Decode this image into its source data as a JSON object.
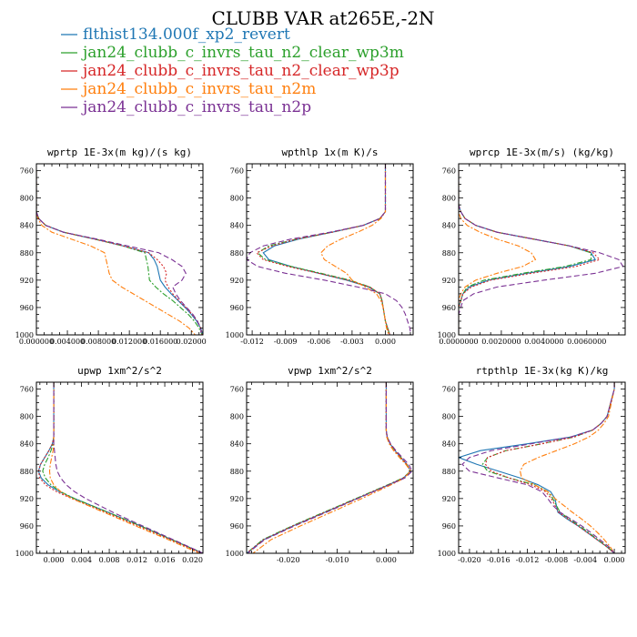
{
  "figure_title": "CLUBB VAR at265E,-2N",
  "legend": [
    {
      "label": "flthist134.000f_xp2_revert",
      "color": "#1f77b4",
      "dash": "solid"
    },
    {
      "label": "jan24_clubb_c_invrs_tau_n2_clear_wp3m",
      "color": "#2ca02c",
      "dash": "dashdot"
    },
    {
      "label": "jan24_clubb_c_invrs_tau_n2_clear_wp3p",
      "color": "#d62728",
      "dash": "dot"
    },
    {
      "label": "jan24_clubb_c_invrs_tau_n2m",
      "color": "#ff7f0e",
      "dash": "dashdot"
    },
    {
      "label": "jan24_clubb_c_invrs_tau_n2p",
      "color": "#7b3294",
      "dash": "dash"
    }
  ],
  "chart_data": [
    {
      "type": "line",
      "title": "wprtp  1E-3x(m kg)/(s kg)",
      "ylim": [
        1000,
        750
      ],
      "yticks": [
        "760",
        "800",
        "840",
        "880",
        "920",
        "960",
        "1000"
      ],
      "yticks_values": [
        760,
        800,
        840,
        880,
        920,
        960,
        1000
      ],
      "xlim": [
        0,
        0.0215
      ],
      "xticks": [
        "0.000000",
        "0.004000",
        "0.008000",
        "0.012000",
        "0.016000",
        "0.02000"
      ],
      "xticks_values": [
        0,
        0.004,
        0.008,
        0.012,
        0.016,
        0.02
      ],
      "y": [
        760,
        800,
        820,
        830,
        840,
        850,
        860,
        870,
        880,
        890,
        900,
        910,
        920,
        930,
        940,
        950,
        960,
        970,
        980,
        990,
        1000
      ],
      "series": [
        {
          "values": [
            0,
            0,
            0,
            0.0003,
            0.0012,
            0.0035,
            0.0075,
            0.0112,
            0.0145,
            0.0152,
            0.0156,
            0.0158,
            0.016,
            0.0166,
            0.0174,
            0.0183,
            0.0192,
            0.02,
            0.0207,
            0.0212,
            0.0215
          ]
        },
        {
          "values": [
            0,
            0,
            0,
            0.0003,
            0.0012,
            0.0035,
            0.0075,
            0.0112,
            0.014,
            0.0142,
            0.0144,
            0.0145,
            0.0146,
            0.0154,
            0.0164,
            0.0176,
            0.0186,
            0.0196,
            0.0204,
            0.021,
            0.0214
          ]
        },
        {
          "values": [
            0,
            0,
            0,
            0.0003,
            0.0012,
            0.0035,
            0.0075,
            0.0112,
            0.0145,
            0.0156,
            0.0164,
            0.0168,
            0.0166,
            0.017,
            0.0176,
            0.0184,
            0.0193,
            0.0201,
            0.0208,
            0.0212,
            0.0214
          ]
        },
        {
          "values": [
            0,
            0,
            0,
            0.0002,
            0.0007,
            0.002,
            0.0045,
            0.007,
            0.0088,
            0.009,
            0.0092,
            0.0094,
            0.0098,
            0.011,
            0.0125,
            0.014,
            0.0155,
            0.017,
            0.0185,
            0.0197,
            0.0205
          ]
        },
        {
          "values": [
            0,
            0,
            0,
            0.0003,
            0.0012,
            0.0035,
            0.0078,
            0.0118,
            0.0158,
            0.0175,
            0.0188,
            0.0193,
            0.0188,
            0.0176,
            0.018,
            0.0186,
            0.0194,
            0.0202,
            0.0208,
            0.0212,
            0.0213
          ]
        }
      ]
    },
    {
      "type": "line",
      "title": "wpthlp  1x(m K)/s",
      "ylim": [
        1000,
        750
      ],
      "yticks": [
        "760",
        "800",
        "840",
        "880",
        "920",
        "960",
        "1000"
      ],
      "yticks_values": [
        760,
        800,
        840,
        880,
        920,
        960,
        1000
      ],
      "xlim": [
        -0.0125,
        0.0025
      ],
      "xticks": [
        "-0.012",
        "-0.009",
        "-0.006",
        "-0.003",
        "0.000"
      ],
      "xticks_values": [
        -0.012,
        -0.009,
        -0.006,
        -0.003,
        0
      ],
      "y": [
        750,
        800,
        820,
        830,
        840,
        850,
        860,
        870,
        880,
        890,
        900,
        910,
        920,
        930,
        940,
        950,
        960,
        970,
        980,
        990,
        1000
      ],
      "series": [
        {
          "values": [
            0,
            0,
            0,
            -0.0005,
            -0.002,
            -0.0048,
            -0.0078,
            -0.01,
            -0.011,
            -0.0105,
            -0.0085,
            -0.006,
            -0.0035,
            -0.0015,
            -0.0005,
            -0.0003,
            -0.0002,
            -0.0001,
            0.0,
            0.0002,
            0.0004
          ]
        },
        {
          "values": [
            0,
            0,
            0,
            -0.0005,
            -0.002,
            -0.0048,
            -0.008,
            -0.0105,
            -0.0115,
            -0.0108,
            -0.0085,
            -0.0058,
            -0.0032,
            -0.0014,
            -0.0005,
            -0.0003,
            -0.0002,
            -0.0001,
            0.0,
            0.0002,
            0.0004
          ]
        },
        {
          "values": [
            0,
            0,
            0,
            -0.0005,
            -0.002,
            -0.0048,
            -0.008,
            -0.0102,
            -0.0116,
            -0.011,
            -0.0088,
            -0.006,
            -0.0034,
            -0.0014,
            -0.0005,
            -0.0003,
            -0.0002,
            -0.0001,
            0.0,
            0.0002,
            0.0004
          ]
        },
        {
          "values": [
            0,
            0,
            0,
            -0.0004,
            -0.0012,
            -0.0025,
            -0.004,
            -0.0052,
            -0.0058,
            -0.0055,
            -0.0045,
            -0.0035,
            -0.003,
            -0.0018,
            -0.0008,
            -0.0004,
            -0.0002,
            -0.0001,
            0.0,
            0.0001,
            0.0003
          ]
        },
        {
          "values": [
            0,
            0,
            0,
            -0.0005,
            -0.002,
            -0.005,
            -0.0085,
            -0.011,
            -0.0122,
            -0.0125,
            -0.0115,
            -0.009,
            -0.0055,
            -0.0025,
            0.0,
            0.001,
            0.0015,
            0.0018,
            0.002,
            0.0022,
            0.0023
          ]
        }
      ]
    },
    {
      "type": "line",
      "title": "wprcp  1E-3x(m/s) (kg/kg)",
      "ylim": [
        1000,
        750
      ],
      "yticks": [
        "760",
        "800",
        "840",
        "880",
        "920",
        "960",
        "1000"
      ],
      "yticks_values": [
        760,
        800,
        840,
        880,
        920,
        960,
        1000
      ],
      "xlim": [
        0,
        0.0078
      ],
      "xticks": [
        "0.0000000",
        "0.0020000",
        "0.0040000",
        "0.0060000"
      ],
      "xticks_values": [
        0,
        0.002,
        0.004,
        0.006
      ],
      "y": [
        760,
        800,
        810,
        820,
        830,
        840,
        850,
        860,
        870,
        880,
        890,
        900,
        910,
        920,
        930,
        940,
        950,
        960,
        970,
        980,
        1000
      ],
      "series": [
        {
          "values": [
            0,
            0,
            0,
            0.0001,
            0.0003,
            0.0008,
            0.0018,
            0.0035,
            0.0052,
            0.0062,
            0.0064,
            0.0052,
            0.0032,
            0.0014,
            0.0005,
            0.0002,
            0.0001,
            0,
            0,
            0,
            0
          ]
        },
        {
          "values": [
            0,
            0,
            0,
            0.0001,
            0.0003,
            0.0008,
            0.0018,
            0.0035,
            0.0052,
            0.0062,
            0.0062,
            0.005,
            0.003,
            0.0012,
            0.0004,
            0.0002,
            0.0001,
            0,
            0,
            0,
            0
          ]
        },
        {
          "values": [
            0,
            0,
            0,
            0.0001,
            0.0003,
            0.0008,
            0.0018,
            0.0035,
            0.0052,
            0.0063,
            0.0066,
            0.0055,
            0.0034,
            0.0015,
            0.0006,
            0.0002,
            0.0001,
            0,
            0,
            0,
            0
          ]
        },
        {
          "values": [
            0,
            0,
            0,
            0,
            0.0001,
            0.0004,
            0.001,
            0.0018,
            0.0028,
            0.0034,
            0.0036,
            0.003,
            0.0018,
            0.0008,
            0.0003,
            0.0001,
            0,
            0,
            0,
            0,
            0
          ]
        },
        {
          "values": [
            0,
            0,
            0,
            0.0001,
            0.0003,
            0.0008,
            0.0018,
            0.0035,
            0.0052,
            0.0066,
            0.0075,
            0.0077,
            0.0064,
            0.004,
            0.0018,
            0.0007,
            0.0002,
            0.0001,
            0,
            0,
            0
          ]
        }
      ]
    },
    {
      "type": "line",
      "title": "upwp  1xm^2/s^2",
      "ylim": [
        1000,
        750
      ],
      "yticks": [
        "760",
        "800",
        "840",
        "880",
        "920",
        "960",
        "1000"
      ],
      "yticks_values": [
        760,
        800,
        840,
        880,
        920,
        960,
        1000
      ],
      "xlim": [
        -0.0025,
        0.0215
      ],
      "xticks": [
        "0.000",
        "0.004",
        "0.008",
        "0.012",
        "0.016",
        "0.020"
      ],
      "xticks_values": [
        0,
        0.004,
        0.008,
        0.012,
        0.016,
        0.02
      ],
      "y": [
        750,
        800,
        830,
        840,
        850,
        860,
        870,
        880,
        890,
        900,
        910,
        920,
        940,
        960,
        980,
        1000
      ],
      "series": [
        {
          "values": [
            0,
            0,
            0,
            -0.0002,
            -0.0007,
            -0.0013,
            -0.0019,
            -0.0022,
            -0.0018,
            -0.0008,
            0.0008,
            0.003,
            0.0078,
            0.0125,
            0.017,
            0.0215
          ]
        },
        {
          "values": [
            0,
            0,
            0,
            -0.0001,
            -0.0004,
            -0.0008,
            -0.0013,
            -0.0016,
            -0.0012,
            -0.0004,
            0.001,
            0.003,
            0.0078,
            0.0125,
            0.017,
            0.0215
          ]
        },
        {
          "values": [
            0,
            0,
            0,
            -0.0002,
            -0.0007,
            -0.0013,
            -0.0019,
            -0.0022,
            -0.002,
            -0.0012,
            0.0004,
            0.0026,
            0.0075,
            0.0122,
            0.0168,
            0.0213
          ]
        },
        {
          "values": [
            0,
            0,
            0,
            0,
            -0.0001,
            -0.0003,
            -0.0005,
            -0.0006,
            -0.0005,
            0.0,
            0.001,
            0.0026,
            0.0072,
            0.0118,
            0.0165,
            0.021
          ]
        },
        {
          "values": [
            0,
            0,
            0,
            0,
            0.0001,
            0.0002,
            0.0003,
            0.0005,
            0.001,
            0.0018,
            0.003,
            0.0046,
            0.0085,
            0.0128,
            0.0172,
            0.0215
          ]
        }
      ]
    },
    {
      "type": "line",
      "title": "vpwp  1xm^2/s^2",
      "ylim": [
        1000,
        750
      ],
      "yticks": [
        "760",
        "800",
        "840",
        "880",
        "920",
        "960",
        "1000"
      ],
      "yticks_values": [
        760,
        800,
        840,
        880,
        920,
        960,
        1000
      ],
      "xlim": [
        -0.0285,
        0.0055
      ],
      "xticks": [
        "-0.020",
        "-0.010",
        "0.000"
      ],
      "xticks_values": [
        -0.02,
        -0.01,
        0
      ],
      "y": [
        750,
        800,
        820,
        830,
        840,
        850,
        860,
        870,
        880,
        890,
        900,
        920,
        940,
        960,
        980,
        1000
      ],
      "series": [
        {
          "values": [
            0,
            0,
            0,
            0.0002,
            0.0008,
            0.0018,
            0.003,
            0.0042,
            0.005,
            0.0035,
            0.0005,
            -0.006,
            -0.0125,
            -0.019,
            -0.025,
            -0.0285
          ]
        },
        {
          "values": [
            0,
            0,
            0,
            0.0002,
            0.0008,
            0.0018,
            0.003,
            0.0042,
            0.005,
            0.0034,
            0.0003,
            -0.0062,
            -0.0127,
            -0.0192,
            -0.0252,
            -0.0285
          ]
        },
        {
          "values": [
            0,
            0,
            0,
            0.0002,
            0.0008,
            0.0018,
            0.003,
            0.0042,
            0.005,
            0.0035,
            0.0005,
            -0.006,
            -0.0125,
            -0.019,
            -0.025,
            -0.0285
          ]
        },
        {
          "values": [
            0,
            0,
            0,
            0.0001,
            0.0006,
            0.0015,
            0.0027,
            0.004,
            0.005,
            0.0037,
            0.001,
            -0.005,
            -0.0112,
            -0.0175,
            -0.0235,
            -0.0272
          ]
        },
        {
          "values": [
            0,
            0,
            0,
            0.0002,
            0.0009,
            0.002,
            0.0033,
            0.0046,
            0.0053,
            0.0038,
            0.0006,
            -0.0058,
            -0.0122,
            -0.0187,
            -0.0248,
            -0.0283
          ]
        }
      ]
    },
    {
      "type": "line",
      "title": "rtpthlp  1E-3x(kg K)/kg",
      "ylim": [
        1000,
        750
      ],
      "yticks": [
        "760",
        "800",
        "840",
        "880",
        "920",
        "960",
        "1000"
      ],
      "yticks_values": [
        760,
        800,
        840,
        880,
        920,
        960,
        1000
      ],
      "xlim": [
        -0.0215,
        0.0015
      ],
      "xticks": [
        "-0.020",
        "-0.016",
        "-0.012",
        "-0.008",
        "-0.004",
        "0.000"
      ],
      "xticks_values": [
        -0.02,
        -0.016,
        -0.012,
        -0.008,
        -0.004,
        0
      ],
      "y": [
        750,
        760,
        780,
        800,
        810,
        820,
        830,
        840,
        850,
        860,
        870,
        880,
        890,
        900,
        910,
        920,
        930,
        940,
        950,
        960,
        970,
        980,
        990,
        1000
      ],
      "series": [
        {
          "values": [
            0,
            0,
            -0.0005,
            -0.001,
            -0.0018,
            -0.003,
            -0.006,
            -0.012,
            -0.0185,
            -0.0215,
            -0.019,
            -0.016,
            -0.013,
            -0.0105,
            -0.0088,
            -0.0082,
            -0.008,
            -0.0078,
            -0.0065,
            -0.005,
            -0.0037,
            -0.0024,
            -0.0011,
            0
          ]
        },
        {
          "values": [
            0,
            0,
            -0.0005,
            -0.001,
            -0.0018,
            -0.003,
            -0.0055,
            -0.01,
            -0.015,
            -0.0175,
            -0.0182,
            -0.0175,
            -0.0145,
            -0.011,
            -0.0092,
            -0.0085,
            -0.008,
            -0.0075,
            -0.0062,
            -0.0048,
            -0.0035,
            -0.0023,
            -0.001,
            0
          ]
        },
        {
          "values": [
            0,
            0,
            -0.0005,
            -0.001,
            -0.0018,
            -0.003,
            -0.0055,
            -0.01,
            -0.015,
            -0.0175,
            -0.0178,
            -0.017,
            -0.0145,
            -0.0115,
            -0.0095,
            -0.0087,
            -0.0082,
            -0.0077,
            -0.0064,
            -0.005,
            -0.0037,
            -0.0024,
            -0.0011,
            0
          ]
        },
        {
          "values": [
            0,
            0,
            -0.0004,
            -0.0008,
            -0.0014,
            -0.0022,
            -0.0035,
            -0.0055,
            -0.008,
            -0.0105,
            -0.0125,
            -0.013,
            -0.0128,
            -0.011,
            -0.0092,
            -0.0082,
            -0.007,
            -0.0058,
            -0.0045,
            -0.0033,
            -0.0023,
            -0.0014,
            -0.0006,
            0
          ]
        },
        {
          "values": [
            0,
            0,
            -0.0005,
            -0.001,
            -0.0018,
            -0.003,
            -0.006,
            -0.0115,
            -0.017,
            -0.02,
            -0.021,
            -0.02,
            -0.016,
            -0.012,
            -0.01,
            -0.0092,
            -0.0085,
            -0.0075,
            -0.006,
            -0.0045,
            -0.0032,
            -0.002,
            -0.0008,
            0
          ]
        }
      ]
    }
  ]
}
